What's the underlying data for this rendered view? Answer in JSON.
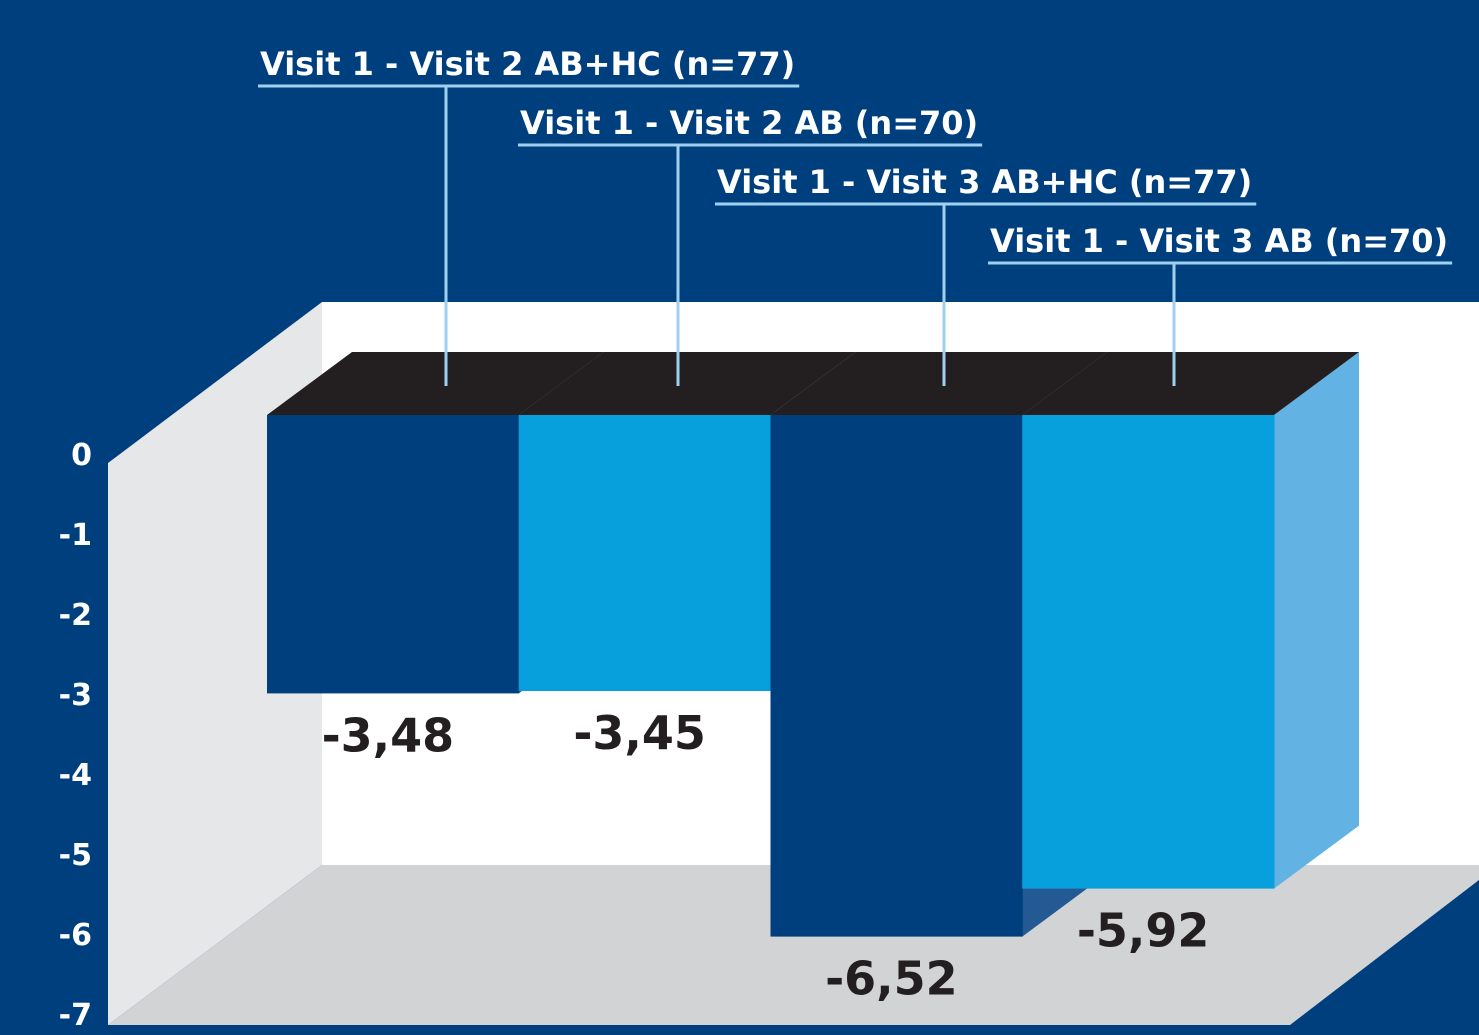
{
  "chart_data": {
    "type": "bar3d",
    "categories": [
      "Visit 1 - Visit 2 AB+HC (n=77)",
      "Visit 1 - Visit 2 AB (n=70)",
      "Visit 1 - Visit 3 AB+HC (n=77)",
      "Visit 1 - Visit 3 AB (n=70)"
    ],
    "values": [
      -3.48,
      -3.45,
      -6.52,
      -5.92
    ],
    "value_labels": [
      "-3,48",
      "-3,45",
      "-6,52",
      "-5,92"
    ],
    "colors": [
      "#003f7d",
      "#079fdc",
      "#003f7d",
      "#079fdc"
    ],
    "ylim": [
      -7,
      0
    ],
    "yticks": [
      0,
      -1,
      -2,
      -3,
      -4,
      -5,
      -6,
      -7
    ]
  }
}
